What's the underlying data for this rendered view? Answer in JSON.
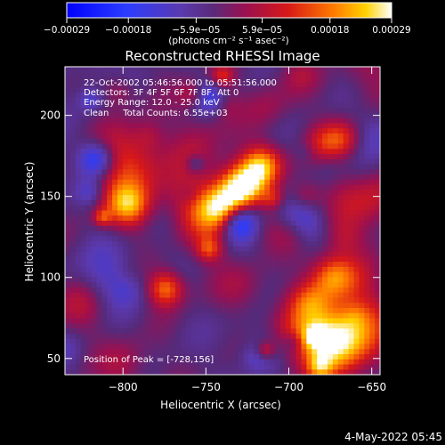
{
  "chart_data": {
    "type": "heatmap",
    "title": "Reconstructed RHESSI Image",
    "xlabel": "Heliocentric X (arcsec)",
    "ylabel": "Heliocentric Y (arcsec)",
    "xlim": [
      -835,
      -645
    ],
    "ylim": [
      40,
      230
    ],
    "x_ticks": [
      -800,
      -750,
      -700,
      -650
    ],
    "y_ticks": [
      50,
      100,
      150,
      200
    ],
    "x_tick_labels": [
      "−800",
      "−750",
      "−700",
      "−650"
    ],
    "y_tick_labels": [
      "50",
      "100",
      "150",
      "200"
    ],
    "colorbar": {
      "min": -0.00029,
      "max": 0.00029,
      "ticks": [
        -0.00029,
        -0.00018,
        -5.9e-05,
        5.9e-05,
        0.00018,
        0.00029
      ],
      "tick_labels": [
        "−0.00029",
        "−0.00018",
        "−5.9e−05",
        "5.9e−05",
        "0.00018",
        "0.00029"
      ],
      "units": "(photons cm⁻² s⁻¹ asec⁻²)"
    },
    "annotations": [
      "22-Oct-2002 05:46:56.000 to 05:51:56.000",
      "Detectors: 3F 4F 5F 6F 7F 8F, Att 0",
      "Energy Range: 12.0 - 25.0 keV",
      "Clean     Total Counts: 6.55e+03"
    ],
    "peak_label": "Position of Peak = [-728,156]",
    "peak": [
      -728,
      156
    ],
    "timestamp": "4-May-2022 05:45",
    "colors": {
      "background": "#000000",
      "text": "#ffffff",
      "colormap": [
        "#0000ff",
        "#3a2eb5",
        "#4a3f9a",
        "#6a2a7a",
        "#a0106a",
        "#d02020",
        "#ff6600",
        "#ffcc00",
        "#ffffff"
      ]
    }
  }
}
